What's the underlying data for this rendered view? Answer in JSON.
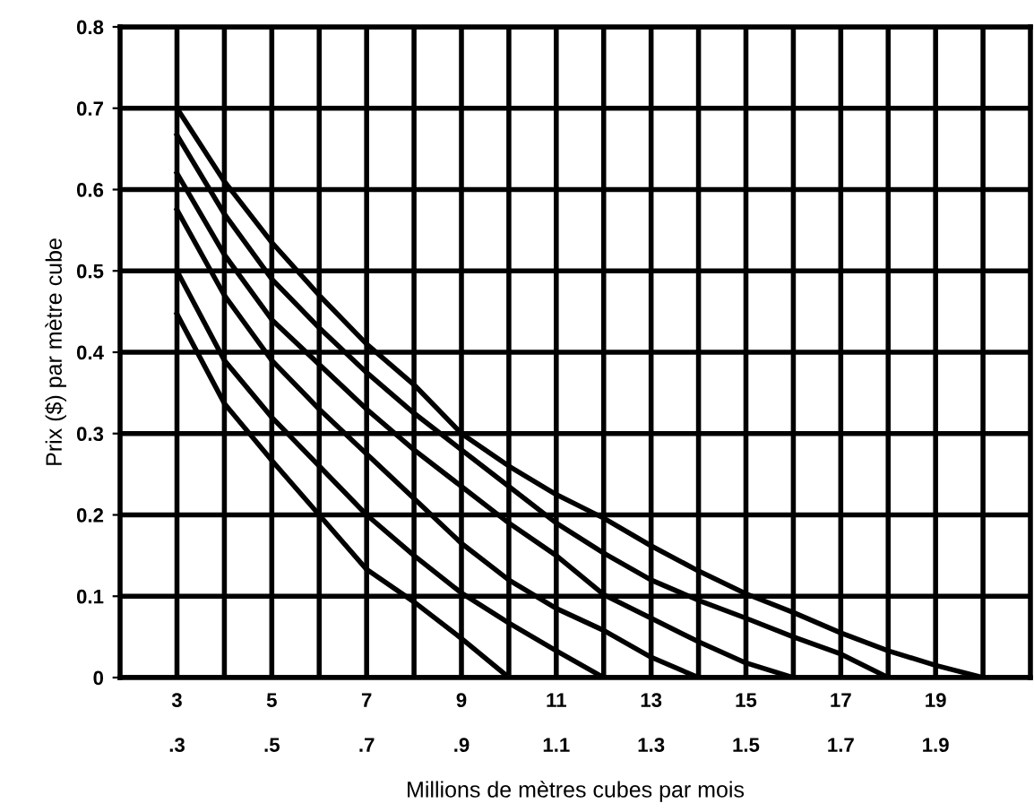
{
  "chart_data": {
    "type": "line",
    "xlabel": "Millions de mètres cubes par mois",
    "ylabel": "Prix ($) par mètre cube",
    "series": [
      {
        "color": "#000000",
        "x": [
          3,
          4,
          5,
          6,
          7,
          8,
          9,
          10
        ],
        "values": [
          0.447,
          0.337,
          0.267,
          0.2,
          0.133,
          0.093,
          0.048,
          0
        ]
      },
      {
        "color": "#000000",
        "x": [
          3,
          4,
          5,
          6,
          7,
          8,
          9,
          10,
          11,
          12
        ],
        "values": [
          0.5,
          0.39,
          0.32,
          0.26,
          0.2,
          0.15,
          0.104,
          0.067,
          0.033,
          0
        ]
      },
      {
        "color": "#000000",
        "x": [
          3,
          4,
          5,
          6,
          7,
          8,
          9,
          10,
          11,
          12,
          13,
          14
        ],
        "values": [
          0.575,
          0.47,
          0.39,
          0.33,
          0.275,
          0.22,
          0.165,
          0.12,
          0.085,
          0.058,
          0.025,
          0
        ]
      },
      {
        "color": "#000000",
        "x": [
          3,
          4,
          5,
          6,
          7,
          8,
          9,
          10,
          11,
          12,
          13,
          14,
          15,
          16
        ],
        "values": [
          0.62,
          0.52,
          0.44,
          0.385,
          0.33,
          0.28,
          0.235,
          0.19,
          0.15,
          0.102,
          0.073,
          0.044,
          0.018,
          0
        ]
      },
      {
        "color": "#000000",
        "x": [
          3,
          4,
          5,
          6,
          7,
          8,
          9,
          10,
          11,
          12,
          13,
          14,
          15,
          16,
          17,
          18
        ],
        "values": [
          0.667,
          0.57,
          0.49,
          0.43,
          0.375,
          0.325,
          0.28,
          0.235,
          0.19,
          0.153,
          0.12,
          0.095,
          0.073,
          0.05,
          0.029,
          0
        ]
      },
      {
        "color": "#000000",
        "x": [
          3,
          4,
          5,
          6,
          7,
          8,
          9,
          10,
          11,
          12,
          13,
          14,
          15,
          16,
          17,
          18,
          19,
          20
        ],
        "values": [
          0.7,
          0.61,
          0.535,
          0.47,
          0.41,
          0.36,
          0.3,
          0.26,
          0.225,
          0.196,
          0.162,
          0.131,
          0.103,
          0.08,
          0.055,
          0.033,
          0.015,
          0
        ]
      }
    ],
    "xlim": [
      1.8,
      21
    ],
    "ylim": [
      0,
      0.8
    ],
    "xticks": [
      3,
      {
        "value": 4,
        "label": null
      },
      5,
      {
        "value": 6,
        "label": null
      },
      7,
      {
        "value": 8,
        "label": null
      },
      9,
      {
        "value": 10,
        "label": null
      },
      11,
      {
        "value": 12,
        "label": null
      },
      13,
      {
        "value": 14,
        "label": null
      },
      15,
      {
        "value": 16,
        "label": null
      },
      17,
      {
        "value": 18,
        "label": null
      },
      19,
      {
        "value": 20,
        "label": null
      }
    ],
    "yticks": [
      0,
      0.1,
      0.2,
      0.3,
      0.4,
      0.5,
      0.6,
      0.7,
      0.8
    ],
    "x2lim": [
      0.18,
      2.1
    ],
    "x2ticks": [
      {
        "value": 0.3,
        "label": ".3"
      },
      {
        "value": 0.5,
        "label": ".5"
      },
      {
        "value": 0.7,
        "label": ".7"
      },
      {
        "value": 0.9,
        "label": ".9"
      },
      1.1,
      1.3,
      1.5,
      1.7,
      1.9
    ],
    "grid": true,
    "marker": "none",
    "line_style": "solid",
    "legend": false
  }
}
